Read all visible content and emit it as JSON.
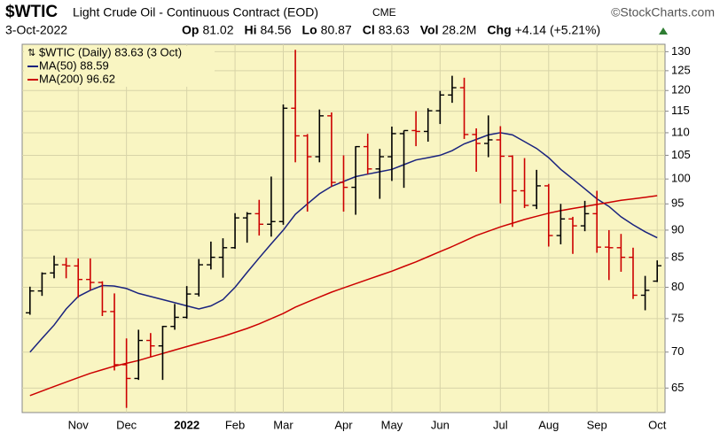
{
  "chart_data": {
    "type": "ohlc",
    "symbol": "$WTIC",
    "title": "Light Crude Oil - Continuous Contract (EOD)",
    "exchange": "CME",
    "credit": "©StockCharts.com",
    "date": "3-Oct-2022",
    "stats": [
      {
        "label": "Op",
        "value": "81.02"
      },
      {
        "label": "Hi",
        "value": "84.56"
      },
      {
        "label": "Lo",
        "value": "80.87"
      },
      {
        "label": "Cl",
        "value": "83.63"
      },
      {
        "label": "Vol",
        "value": "28.2M"
      },
      {
        "label": "Chg",
        "value": "+4.14 (+5.21%)"
      }
    ],
    "price_legend": "$WTIC (Daily) 83.63 (3 Oct)",
    "categories": [
      null,
      null,
      null,
      null,
      "Nov",
      null,
      null,
      null,
      "Dec",
      null,
      null,
      null,
      null,
      "2022",
      null,
      null,
      null,
      "Feb",
      null,
      null,
      null,
      "Mar",
      null,
      null,
      null,
      null,
      "Apr",
      null,
      null,
      null,
      "May",
      null,
      null,
      null,
      "Jun",
      null,
      null,
      null,
      null,
      "Jul",
      null,
      null,
      null,
      "Aug",
      null,
      null,
      null,
      "Sep",
      null,
      null,
      null,
      null,
      "Oct"
    ],
    "open": [
      75.9,
      79.4,
      82.4,
      83.8,
      83.6,
      81.3,
      80.8,
      76.1,
      68.2,
      66.3,
      71.7,
      70.9,
      73.8,
      75.2,
      78.9,
      83.8,
      85.1,
      86.8,
      92.3,
      93.1,
      91.1,
      91.6,
      115.7,
      109.3,
      104.7,
      113.9,
      99.3,
      98.3,
      106.9,
      102.1,
      104.7,
      109.8,
      110.5,
      110.3,
      115.1,
      118.9,
      120.7,
      109.6,
      107.6,
      108.4,
      104.8,
      97.6,
      94.7,
      98.6,
      89.0,
      92.1,
      90.8,
      93.1,
      86.9,
      86.8,
      85.1,
      78.7,
      81.02
    ],
    "high": [
      80.1,
      82.5,
      85.4,
      85.0,
      84.9,
      84.9,
      81.0,
      79.0,
      72.0,
      73.3,
      72.8,
      73.9,
      77.3,
      80.2,
      84.8,
      87.9,
      88.5,
      93.2,
      93.4,
      95.8,
      100.5,
      116.6,
      130.5,
      109.7,
      115.4,
      114.7,
      105.0,
      107.0,
      109.8,
      106.4,
      111.4,
      110.5,
      115.0,
      115.7,
      119.9,
      123.7,
      123.2,
      111.0,
      114.0,
      111.5,
      105.0,
      104.4,
      101.9,
      99.0,
      95.0,
      92.5,
      95.6,
      97.6,
      90.0,
      89.3,
      86.8,
      81.9,
      84.56
    ],
    "low": [
      75.6,
      78.6,
      81.5,
      81.5,
      78.3,
      79.5,
      75.4,
      67.4,
      62.4,
      66.1,
      69.3,
      66.1,
      73.3,
      75.0,
      78.5,
      83.0,
      81.6,
      86.6,
      87.7,
      89.0,
      88.8,
      91.0,
      103.5,
      93.5,
      103.5,
      98.4,
      93.5,
      92.9,
      101.0,
      96.0,
      99.6,
      98.2,
      107.0,
      108.0,
      112.0,
      117.0,
      108.6,
      101.5,
      104.6,
      95.1,
      90.6,
      94.2,
      94.0,
      87.0,
      87.4,
      85.7,
      89.8,
      85.9,
      81.2,
      82.6,
      78.1,
      76.3,
      80.87
    ],
    "close": [
      79.4,
      82.3,
      83.8,
      83.6,
      81.3,
      80.8,
      76.1,
      68.2,
      66.3,
      71.7,
      70.9,
      73.8,
      75.2,
      78.9,
      83.8,
      85.1,
      86.8,
      92.3,
      93.1,
      91.1,
      91.6,
      115.7,
      109.3,
      104.7,
      113.9,
      99.3,
      98.3,
      106.9,
      102.1,
      104.7,
      109.8,
      110.5,
      110.3,
      115.1,
      118.9,
      120.7,
      109.6,
      107.6,
      108.4,
      104.8,
      97.6,
      94.7,
      98.6,
      89.0,
      92.1,
      90.8,
      93.1,
      86.9,
      86.8,
      85.1,
      78.7,
      79.5,
      83.63
    ],
    "up_color": "#000000",
    "down_color": "#cc0000",
    "series": [
      {
        "name": "MA(50) 88.59",
        "color": "#1a237e",
        "values": [
          70,
          72,
          74,
          76.5,
          78.5,
          79.5,
          80.3,
          80.2,
          79.8,
          79,
          78.5,
          78,
          77.5,
          77,
          76.5,
          77,
          78,
          80,
          82.5,
          85,
          87.5,
          90,
          93,
          95,
          97,
          98.5,
          99.5,
          100.5,
          101,
          101.5,
          102,
          103,
          104,
          104.5,
          105,
          106,
          107.5,
          108.5,
          109.5,
          110,
          109.5,
          108,
          106.5,
          104.5,
          102,
          100,
          98,
          96,
          94.5,
          92.5,
          91,
          89.7,
          88.59
        ]
      },
      {
        "name": "MA(200) 96.62",
        "color": "#cc0000",
        "values": [
          64,
          64.6,
          65.2,
          65.8,
          66.4,
          67,
          67.5,
          68,
          68.4,
          68.8,
          69.3,
          69.8,
          70.3,
          70.8,
          71.3,
          71.8,
          72.3,
          72.9,
          73.5,
          74.2,
          75,
          75.8,
          76.8,
          77.6,
          78.4,
          79.2,
          79.9,
          80.6,
          81.3,
          82,
          82.7,
          83.5,
          84.3,
          85.2,
          86.1,
          87,
          88,
          89,
          89.8,
          90.6,
          91.3,
          92,
          92.6,
          93.2,
          93.7,
          94.1,
          94.5,
          94.9,
          95.3,
          95.7,
          96,
          96.3,
          96.62
        ]
      }
    ],
    "ylim": [
      61.8,
      132
    ],
    "yticks": [
      65,
      70,
      75,
      80,
      85,
      90,
      95,
      100,
      105,
      110,
      115,
      120,
      125,
      130
    ],
    "log_scale": true,
    "grid": true
  }
}
